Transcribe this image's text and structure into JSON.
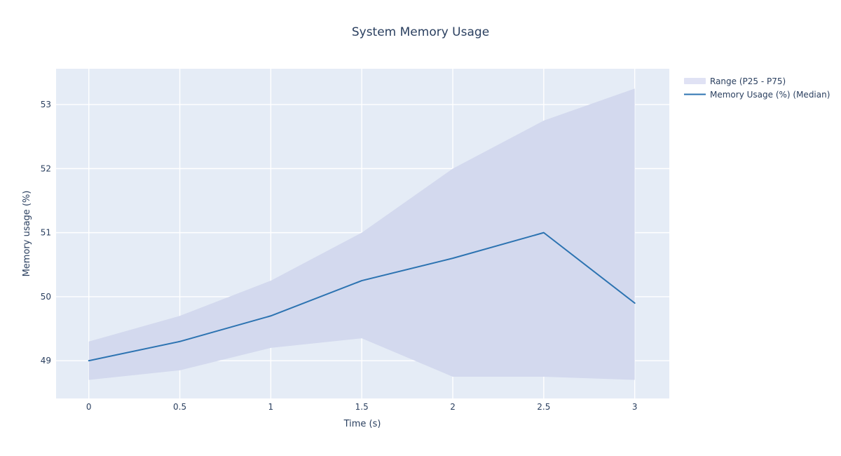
{
  "page": {
    "background_color": "#ffffff"
  },
  "chart_data": {
    "type": "line",
    "title": "System Memory Usage",
    "xlabel": "Time (s)",
    "ylabel": "Memory usage (%)",
    "x": [
      0,
      0.5,
      1,
      1.5,
      2,
      2.5,
      3
    ],
    "series": [
      {
        "name": "Range (P25 - P75)",
        "type": "band",
        "lower": [
          48.7,
          48.85,
          49.2,
          49.35,
          48.75,
          48.75,
          48.7
        ],
        "upper": [
          49.3,
          49.7,
          50.25,
          51.0,
          52.0,
          52.75,
          53.25
        ],
        "fill_color": "#d3d9ee",
        "legend_swatch_color": "#e0e2f4"
      },
      {
        "name": "Memory Usage (%) (Median)",
        "type": "line",
        "values": [
          49.0,
          49.3,
          49.7,
          50.25,
          50.6,
          51.0,
          49.9
        ],
        "line_color": "#2c73b1",
        "line_width": 2
      }
    ],
    "xticks": [
      0,
      0.5,
      1,
      1.5,
      2,
      2.5,
      3
    ],
    "yticks": [
      49,
      50,
      51,
      52,
      53
    ],
    "xlim": [
      -0.18,
      3.19
    ],
    "ylim": [
      48.41,
      53.56
    ],
    "grid": true,
    "grid_color": "#ffffff",
    "plot_bg_color": "#e5ecf6",
    "text_color": "#2a3f5f",
    "legend_position": "top-right-outside"
  },
  "legend": {
    "items": [
      {
        "label": "Range (P25 - P75)"
      },
      {
        "label": "Memory Usage (%) (Median)"
      }
    ]
  }
}
